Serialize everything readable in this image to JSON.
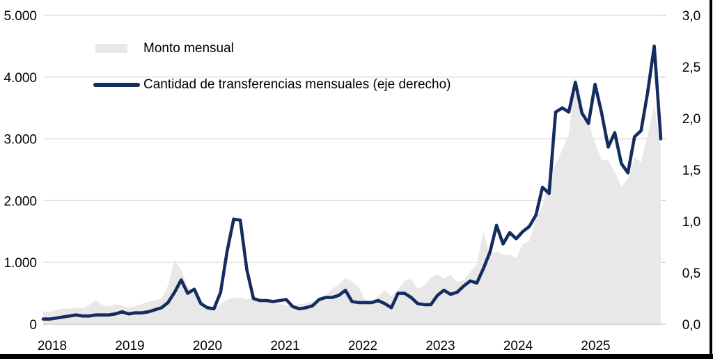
{
  "legend": {
    "items": [
      {
        "label": "Monto mensual",
        "type": "area",
        "color": "#e8e8e8"
      },
      {
        "label": "Cantidad de transferencias mensuales (eje derecho)",
        "type": "line",
        "color": "#142c5f"
      }
    ]
  },
  "axes": {
    "left_ticks": [
      "5.000",
      "4.000",
      "3.000",
      "2.000",
      "1.000",
      "0"
    ],
    "right_ticks": [
      "3,0",
      "2,5",
      "2,0",
      "1,5",
      "1,0",
      "0,5",
      "0,0"
    ],
    "x_ticks": [
      "2018",
      "2019",
      "2020",
      "2021",
      "2022",
      "2023",
      "2024",
      "2025"
    ]
  },
  "colors": {
    "line": "#142c5f",
    "area_fill": "#e8e8e8",
    "gridline": "#d9d9d9",
    "axis": "#c8c8c8",
    "frame_border": "#000000",
    "background": "#ffffff",
    "text": "#000000"
  },
  "chart_data": {
    "type": "area",
    "subtype": "combo area + line, dual axis",
    "title": "",
    "xlabel": "",
    "ylabel_left": "",
    "ylabel_right": "",
    "legend_position": "inside top-left",
    "grid": "horizontal only",
    "left_axis": {
      "min": 0,
      "max": 5000,
      "step": 1000,
      "format": "thousands with dot separator"
    },
    "right_axis": {
      "min": 0,
      "max": 3.0,
      "step": 0.5,
      "format": "decimal comma"
    },
    "x_monthly": [
      "2018-01",
      "2018-02",
      "2018-03",
      "2018-04",
      "2018-05",
      "2018-06",
      "2018-07",
      "2018-08",
      "2018-09",
      "2018-10",
      "2018-11",
      "2018-12",
      "2019-01",
      "2019-02",
      "2019-03",
      "2019-04",
      "2019-05",
      "2019-06",
      "2019-07",
      "2019-08",
      "2019-09",
      "2019-10",
      "2019-11",
      "2019-12",
      "2020-01",
      "2020-02",
      "2020-03",
      "2020-04",
      "2020-05",
      "2020-06",
      "2020-07",
      "2020-08",
      "2020-09",
      "2020-10",
      "2020-11",
      "2020-12",
      "2021-01",
      "2021-02",
      "2021-03",
      "2021-04",
      "2021-05",
      "2021-06",
      "2021-07",
      "2021-08",
      "2021-09",
      "2021-10",
      "2021-11",
      "2021-12",
      "2022-01",
      "2022-02",
      "2022-03",
      "2022-04",
      "2022-05",
      "2022-06",
      "2022-07",
      "2022-08",
      "2022-09",
      "2022-10",
      "2022-11",
      "2022-12",
      "2023-01",
      "2023-02",
      "2023-03",
      "2023-04",
      "2023-05",
      "2023-06",
      "2023-07",
      "2023-08",
      "2023-09",
      "2023-10",
      "2023-11",
      "2023-12",
      "2024-01",
      "2024-02",
      "2024-03",
      "2024-04",
      "2024-05",
      "2024-06",
      "2024-07",
      "2024-08",
      "2024-09",
      "2024-10",
      "2024-11",
      "2024-12",
      "2025-01",
      "2025-02",
      "2025-03",
      "2025-04",
      "2025-05",
      "2025-06",
      "2025-07",
      "2025-08",
      "2025-09",
      "2025-10",
      "2025-11"
    ],
    "series": [
      {
        "name": "Monto mensual",
        "type": "area",
        "axis": "left",
        "color": "#e8e8e8",
        "values": [
          210,
          200,
          235,
          255,
          250,
          270,
          255,
          310,
          395,
          310,
          290,
          325,
          300,
          270,
          290,
          325,
          365,
          385,
          420,
          625,
          1050,
          880,
          605,
          510,
          345,
          290,
          265,
          325,
          400,
          425,
          435,
          400,
          425,
          380,
          370,
          345,
          325,
          310,
          310,
          325,
          335,
          370,
          400,
          470,
          570,
          645,
          750,
          690,
          600,
          400,
          380,
          455,
          550,
          455,
          560,
          700,
          735,
          570,
          625,
          755,
          810,
          735,
          810,
          680,
          715,
          845,
          980,
          1490,
          1125,
          1180,
          1125,
          1125,
          1070,
          1290,
          1350,
          1715,
          1900,
          2400,
          2590,
          2820,
          3070,
          4000,
          3330,
          3270,
          2930,
          2650,
          2660,
          2460,
          2230,
          2350,
          2700,
          2620,
          3050,
          3560,
          2850
        ]
      },
      {
        "name": "Cantidad de transferencias mensuales (eje derecho)",
        "type": "line",
        "axis": "right",
        "color": "#142c5f",
        "values": [
          0.05,
          0.05,
          0.06,
          0.07,
          0.08,
          0.09,
          0.08,
          0.08,
          0.09,
          0.09,
          0.09,
          0.1,
          0.12,
          0.1,
          0.11,
          0.11,
          0.12,
          0.14,
          0.16,
          0.21,
          0.31,
          0.43,
          0.3,
          0.34,
          0.2,
          0.16,
          0.15,
          0.31,
          0.71,
          1.02,
          1.01,
          0.53,
          0.25,
          0.23,
          0.23,
          0.22,
          0.23,
          0.24,
          0.17,
          0.15,
          0.16,
          0.18,
          0.24,
          0.26,
          0.26,
          0.28,
          0.33,
          0.22,
          0.21,
          0.21,
          0.21,
          0.23,
          0.2,
          0.16,
          0.3,
          0.3,
          0.26,
          0.2,
          0.19,
          0.19,
          0.28,
          0.33,
          0.29,
          0.31,
          0.37,
          0.42,
          0.4,
          0.54,
          0.7,
          0.96,
          0.78,
          0.89,
          0.83,
          0.9,
          0.95,
          1.06,
          1.33,
          1.27,
          2.06,
          2.1,
          2.06,
          2.35,
          2.05,
          1.95,
          2.33,
          2.05,
          1.72,
          1.86,
          1.56,
          1.47,
          1.82,
          1.88,
          2.25,
          2.7,
          1.8
        ]
      }
    ]
  }
}
